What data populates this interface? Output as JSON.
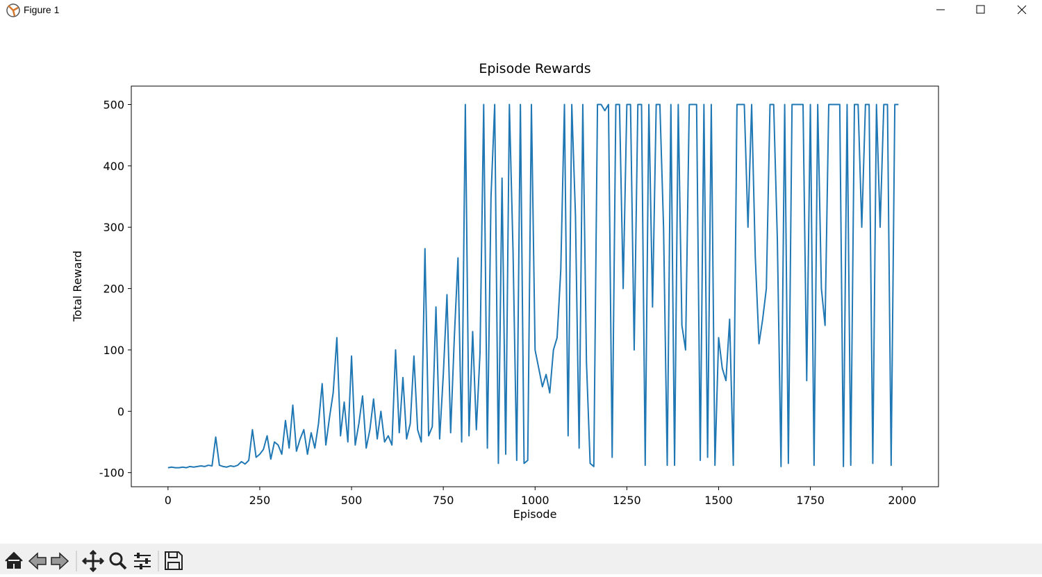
{
  "window": {
    "title": "Figure 1"
  },
  "chart_data": {
    "type": "line",
    "title": "Episode Rewards",
    "x_label": "Episode",
    "y_label": "Total Reward",
    "color": "#1f77b4",
    "xlim": [
      -100,
      2099
    ],
    "ylim": [
      -123,
      530
    ],
    "xticks": [
      0,
      250,
      500,
      750,
      1000,
      1250,
      1500,
      1750,
      2000
    ],
    "yticks": [
      -100,
      0,
      100,
      200,
      300,
      400,
      500
    ],
    "x": [
      0,
      10,
      20,
      30,
      40,
      50,
      60,
      70,
      80,
      90,
      100,
      110,
      120,
      130,
      140,
      150,
      160,
      170,
      180,
      190,
      200,
      210,
      220,
      230,
      240,
      250,
      260,
      270,
      280,
      290,
      300,
      310,
      320,
      330,
      340,
      350,
      360,
      370,
      380,
      390,
      400,
      410,
      420,
      430,
      440,
      450,
      460,
      470,
      480,
      490,
      500,
      510,
      520,
      530,
      540,
      550,
      560,
      570,
      580,
      590,
      600,
      610,
      620,
      630,
      640,
      650,
      660,
      670,
      680,
      690,
      700,
      710,
      720,
      730,
      740,
      750,
      760,
      770,
      780,
      790,
      800,
      810,
      820,
      830,
      840,
      850,
      860,
      870,
      880,
      890,
      900,
      910,
      920,
      930,
      940,
      950,
      960,
      970,
      980,
      990,
      1000,
      1010,
      1020,
      1030,
      1040,
      1050,
      1060,
      1070,
      1080,
      1090,
      1100,
      1110,
      1120,
      1130,
      1140,
      1150,
      1160,
      1170,
      1180,
      1190,
      1200,
      1210,
      1220,
      1230,
      1240,
      1250,
      1260,
      1270,
      1280,
      1290,
      1300,
      1310,
      1320,
      1330,
      1340,
      1350,
      1360,
      1370,
      1380,
      1390,
      1400,
      1410,
      1420,
      1430,
      1440,
      1450,
      1460,
      1470,
      1480,
      1490,
      1500,
      1510,
      1520,
      1530,
      1540,
      1550,
      1560,
      1570,
      1580,
      1590,
      1600,
      1610,
      1620,
      1630,
      1640,
      1650,
      1660,
      1670,
      1680,
      1690,
      1700,
      1710,
      1720,
      1730,
      1740,
      1750,
      1760,
      1770,
      1780,
      1790,
      1800,
      1810,
      1820,
      1830,
      1840,
      1850,
      1860,
      1870,
      1880,
      1890,
      1900,
      1910,
      1920,
      1930,
      1940,
      1950,
      1960,
      1970,
      1980,
      1990
    ],
    "values": [
      -92,
      -91,
      -92,
      -92,
      -91,
      -92,
      -90,
      -91,
      -90,
      -89,
      -90,
      -88,
      -89,
      -42,
      -88,
      -90,
      -91,
      -89,
      -90,
      -88,
      -82,
      -86,
      -80,
      -30,
      -75,
      -70,
      -62,
      -40,
      -78,
      -50,
      -55,
      -70,
      -15,
      -60,
      10,
      -65,
      -45,
      -30,
      -70,
      -35,
      -60,
      -20,
      45,
      -55,
      -10,
      30,
      120,
      -40,
      15,
      -50,
      90,
      -55,
      -20,
      25,
      -60,
      -30,
      20,
      -45,
      0,
      -50,
      -40,
      -55,
      100,
      -35,
      55,
      -45,
      -20,
      90,
      -30,
      -50,
      265,
      -40,
      -25,
      170,
      -45,
      60,
      190,
      -35,
      120,
      250,
      -50,
      500,
      -40,
      130,
      -30,
      95,
      500,
      -60,
      350,
      500,
      -85,
      380,
      -70,
      500,
      260,
      -80,
      500,
      -85,
      -80,
      500,
      100,
      70,
      40,
      60,
      30,
      100,
      120,
      230,
      500,
      -40,
      500,
      320,
      -60,
      500,
      80,
      -85,
      -90,
      500,
      500,
      490,
      500,
      -75,
      500,
      500,
      200,
      500,
      500,
      100,
      500,
      500,
      -88,
      500,
      170,
      500,
      500,
      300,
      -88,
      500,
      -88,
      500,
      140,
      100,
      500,
      500,
      500,
      -80,
      500,
      -75,
      500,
      -88,
      120,
      70,
      50,
      150,
      -88,
      500,
      500,
      500,
      300,
      500,
      250,
      110,
      150,
      200,
      500,
      500,
      280,
      -90,
      500,
      -85,
      500,
      500,
      500,
      500,
      50,
      500,
      -88,
      500,
      200,
      140,
      500,
      500,
      500,
      500,
      -90,
      500,
      -88,
      500,
      500,
      300,
      500,
      500,
      -85,
      500,
      300,
      500,
      500,
      -88,
      500,
      500
    ]
  }
}
